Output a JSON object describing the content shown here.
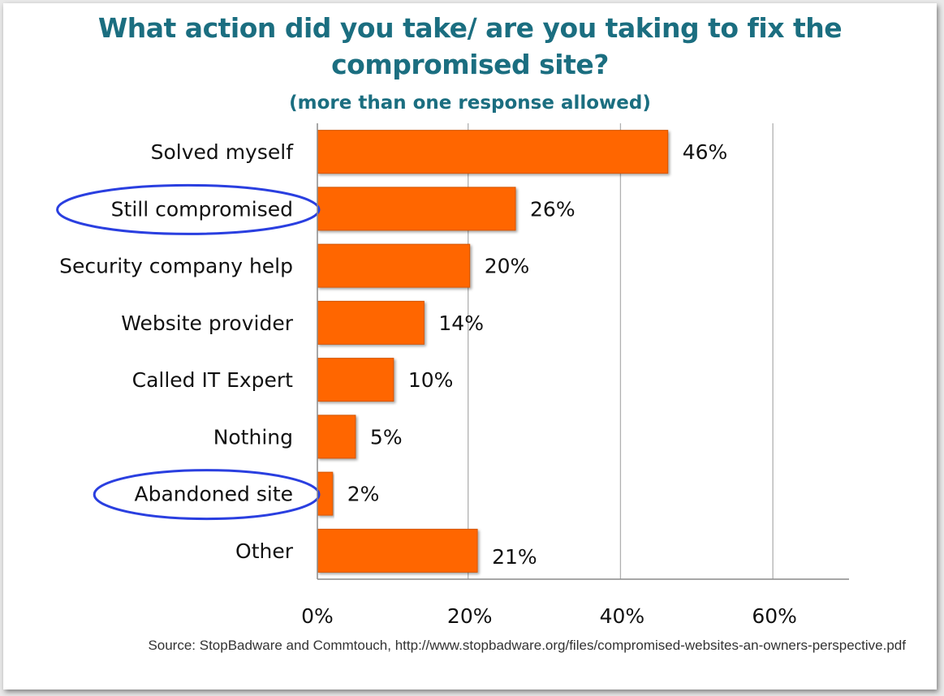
{
  "chart_data": {
    "type": "bar",
    "orientation": "horizontal",
    "title": "What action did you take/ are you taking to fix the compromised site?",
    "subtitle": "(more than one response allowed)",
    "categories": [
      "Solved myself",
      "Still compromised",
      "Security company help",
      "Website provider",
      "Called IT Expert",
      "Nothing",
      "Abandoned site",
      "Other"
    ],
    "values": [
      46,
      26,
      20,
      14,
      10,
      5,
      2,
      21
    ],
    "value_labels": [
      "46%",
      "26%",
      "20%",
      "14%",
      "10%",
      "5%",
      "2%",
      "21%"
    ],
    "xlim": [
      0,
      70
    ],
    "x_ticks": [
      "0%",
      "20%",
      "40%",
      "60%"
    ],
    "x_tick_values": [
      0,
      20,
      40,
      60
    ],
    "grid": true,
    "highlighted_categories": [
      "Still compromised",
      "Abandoned site"
    ],
    "colors": {
      "bar": "#ff6600",
      "bar_edge": "#d45500",
      "highlight_ellipse": "#2a3fe0",
      "grid": "#b0b0b0",
      "title": "#1b6e80"
    }
  },
  "source": "Source: StopBadware and Commtouch, http://www.stopbadware.org/files/compromised-websites-an-owners-perspective.pdf"
}
